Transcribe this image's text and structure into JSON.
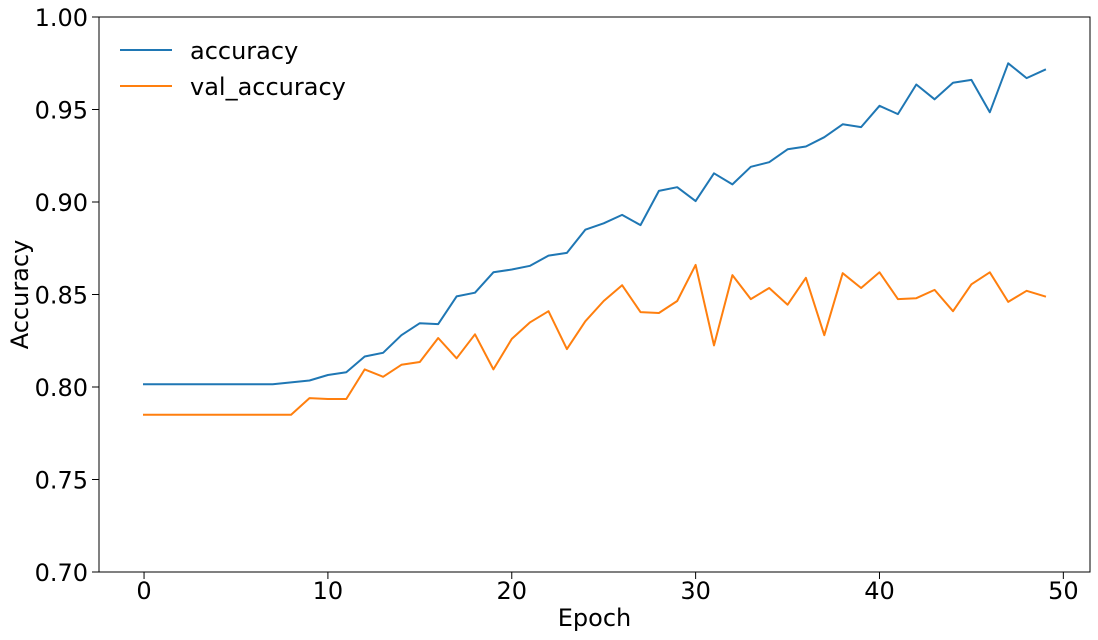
{
  "chart_data": {
    "type": "line",
    "title": "",
    "xlabel": "Epoch",
    "ylabel": "Accuracy",
    "xlim": [
      -2.45,
      51.45
    ],
    "ylim": [
      0.7,
      1.0
    ],
    "xticks": [
      0,
      10,
      20,
      30,
      40,
      50
    ],
    "xtick_labels": [
      "0",
      "10",
      "20",
      "30",
      "40",
      "50"
    ],
    "yticks": [
      0.7,
      0.75,
      0.8,
      0.85,
      0.9,
      0.95,
      1.0
    ],
    "ytick_labels": [
      "0.70",
      "0.75",
      "0.80",
      "0.85",
      "0.90",
      "0.95",
      "1.00"
    ],
    "grid": false,
    "legend_position": "upper-left",
    "x": [
      0,
      1,
      2,
      3,
      4,
      5,
      6,
      7,
      8,
      9,
      10,
      11,
      12,
      13,
      14,
      15,
      16,
      17,
      18,
      19,
      20,
      21,
      22,
      23,
      24,
      25,
      26,
      27,
      28,
      29,
      30,
      31,
      32,
      33,
      34,
      35,
      36,
      37,
      38,
      39,
      40,
      41,
      42,
      43,
      44,
      45,
      46,
      47,
      48,
      49
    ],
    "series": [
      {
        "name": "accuracy",
        "color": "#1f77b4",
        "values": [
          0.8015,
          0.8015,
          0.8015,
          0.8015,
          0.8015,
          0.8015,
          0.8015,
          0.8015,
          0.8025,
          0.8035,
          0.8065,
          0.808,
          0.8165,
          0.8185,
          0.828,
          0.8345,
          0.834,
          0.849,
          0.851,
          0.862,
          0.8635,
          0.8655,
          0.871,
          0.8725,
          0.885,
          0.8885,
          0.893,
          0.8875,
          0.906,
          0.908,
          0.9005,
          0.9155,
          0.9095,
          0.919,
          0.9215,
          0.9285,
          0.93,
          0.935,
          0.942,
          0.9405,
          0.952,
          0.9475,
          0.9635,
          0.9555,
          0.9645,
          0.966,
          0.9485,
          0.975,
          0.967,
          0.9715
        ]
      },
      {
        "name": "val_accuracy",
        "color": "#ff7f0e",
        "values": [
          0.785,
          0.785,
          0.785,
          0.785,
          0.785,
          0.785,
          0.785,
          0.785,
          0.785,
          0.794,
          0.7935,
          0.7935,
          0.8095,
          0.8055,
          0.812,
          0.8135,
          0.8265,
          0.8155,
          0.8285,
          0.8095,
          0.826,
          0.835,
          0.841,
          0.8205,
          0.8355,
          0.8465,
          0.855,
          0.8405,
          0.84,
          0.8465,
          0.866,
          0.8225,
          0.8605,
          0.8475,
          0.8535,
          0.8445,
          0.859,
          0.828,
          0.8615,
          0.8535,
          0.862,
          0.8475,
          0.848,
          0.8525,
          0.841,
          0.8555,
          0.862,
          0.846,
          0.852,
          0.849
        ]
      }
    ]
  }
}
